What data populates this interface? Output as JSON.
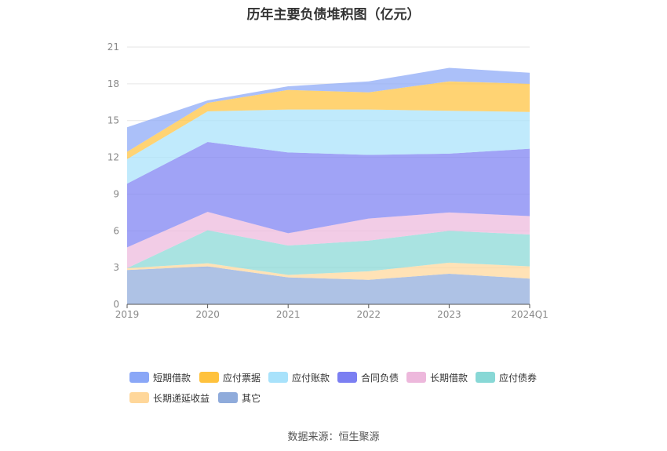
{
  "title": "历年主要负债堆积图（亿元）",
  "source": "数据来源：恒生聚源",
  "chart_data": {
    "type": "area",
    "stacked": true,
    "title": "历年主要负债堆积图（亿元）",
    "categories": [
      "2019",
      "2020",
      "2021",
      "2022",
      "2023",
      "2024Q1"
    ],
    "ylim": [
      0,
      21
    ],
    "yticks": [
      0,
      3,
      6,
      9,
      12,
      15,
      18,
      21
    ],
    "grid": true,
    "legend_position": "bottom",
    "series": [
      {
        "name": "其它",
        "color": "#8FABDB",
        "values": [
          2.8,
          3.1,
          2.2,
          2.0,
          2.5,
          2.1
        ]
      },
      {
        "name": "长期递延收益",
        "color": "#FFD79A",
        "values": [
          0.15,
          0.25,
          0.2,
          0.7,
          0.9,
          1.0
        ]
      },
      {
        "name": "应付债券",
        "color": "#88D8D6",
        "values": [
          0.0,
          2.7,
          2.4,
          2.5,
          2.6,
          2.6
        ]
      },
      {
        "name": "长期借款",
        "color": "#EDB8DC",
        "values": [
          1.7,
          1.5,
          1.0,
          1.8,
          1.5,
          1.5
        ]
      },
      {
        "name": "合同负债",
        "color": "#7B7FF2",
        "values": [
          5.2,
          5.7,
          6.6,
          5.2,
          4.8,
          5.5
        ]
      },
      {
        "name": "应付账款",
        "color": "#A8E2FB",
        "values": [
          2.0,
          2.5,
          3.5,
          3.7,
          3.5,
          3.0
        ]
      },
      {
        "name": "应付票据",
        "color": "#FFC23D",
        "values": [
          0.6,
          0.7,
          1.6,
          1.4,
          2.4,
          2.3
        ]
      },
      {
        "name": "短期借款",
        "color": "#8AA7F7",
        "values": [
          2.0,
          0.2,
          0.3,
          0.9,
          1.1,
          0.9
        ]
      }
    ],
    "legend_order": [
      "短期借款",
      "应付票据",
      "应付账款",
      "合同负债",
      "长期借款",
      "应付债券",
      "长期递延收益",
      "其它"
    ]
  }
}
